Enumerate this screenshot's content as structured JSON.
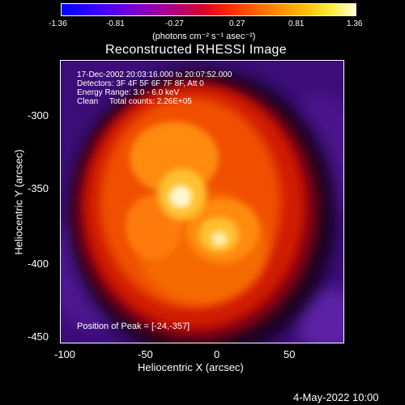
{
  "colorbar": {
    "ticks": [
      "-1.36",
      "-0.81",
      "-0.27",
      "0.27",
      "0.81",
      "1.36"
    ],
    "units": "(photons cm⁻² s⁻¹ asec⁻²)"
  },
  "plot": {
    "title": "Reconstructed RHESSI Image",
    "info_lines": [
      "17-Dec-2002 20:03:16.000 to 20:07:52.000",
      "Detectors: 3F 4F 5F 6F 7F 8F, Att 0",
      "Energy Range: 3.0 - 6.0 keV",
      "Clean     Total counts: 2.26E+05"
    ],
    "peak_label": "Position of Peak = [-24,-357]",
    "xlabel": "Heliocentric X (arcsec)",
    "ylabel": "Heliocentric Y (arcsec)",
    "xticks": [
      "-100",
      "-50",
      "0",
      "50"
    ],
    "yticks": [
      "-300",
      "-350",
      "-400",
      "-450"
    ]
  },
  "footer": {
    "timestamp": "4-May-2022 10:00"
  },
  "colors": {
    "background": "#000000",
    "frame": "#ffffff",
    "image_low": "#3a0c72",
    "image_mid": "#d81e00",
    "image_high": "#ffffe8"
  }
}
